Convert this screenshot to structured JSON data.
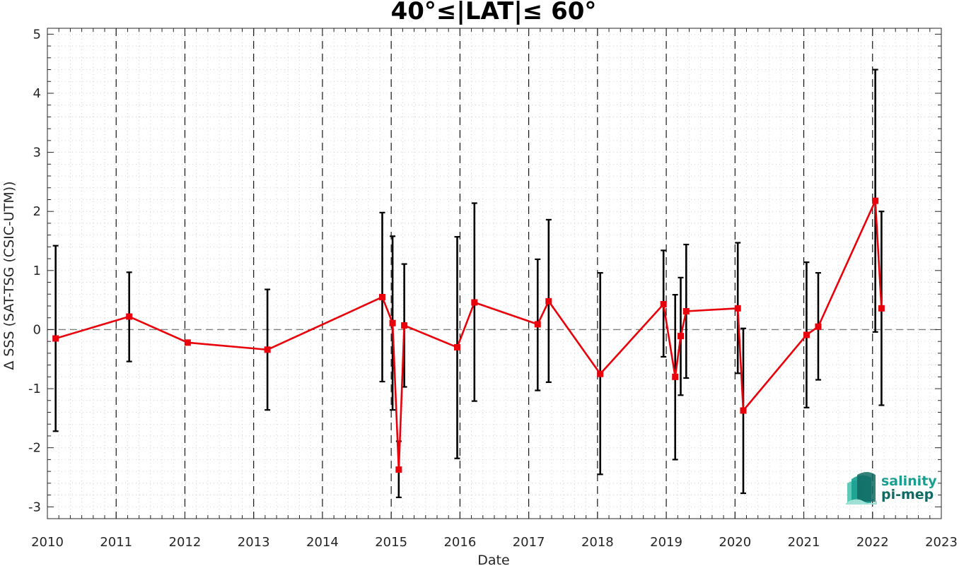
{
  "chart_data": {
    "type": "line",
    "title": "40°≤|LAT|≤ 60°",
    "xlabel": "Date",
    "ylabel": "Δ SSS (SAT-TSG (CSIC-UTM))",
    "xlim": [
      2010,
      2023
    ],
    "ylim": [
      -3.2,
      5.1
    ],
    "x_ticks": [
      "2010",
      "2011",
      "2012",
      "2013",
      "2014",
      "2015",
      "2016",
      "2017",
      "2018",
      "2019",
      "2020",
      "2021",
      "2022",
      "2023"
    ],
    "y_ticks": [
      "-3",
      "-2",
      "-1",
      "0",
      "1",
      "2",
      "3",
      "4",
      "5"
    ],
    "grid": true,
    "reference_line_y": 0,
    "year_boundaries": [
      2011,
      2012,
      2013,
      2014,
      2015,
      2016,
      2017,
      2018,
      2019,
      2020,
      2021,
      2022
    ],
    "series": [
      {
        "color": "#e8000b",
        "marker": "square",
        "points": [
          {
            "x": 2010.12,
            "y": -0.15,
            "lo": -1.72,
            "hi": 1.42
          },
          {
            "x": 2011.19,
            "y": 0.22,
            "lo": -0.54,
            "hi": 0.97
          },
          {
            "x": 2012.04,
            "y": -0.22,
            "lo": null,
            "hi": null
          },
          {
            "x": 2013.2,
            "y": -0.34,
            "lo": -1.36,
            "hi": 0.68
          },
          {
            "x": 2014.87,
            "y": 0.55,
            "lo": -0.88,
            "hi": 1.98
          },
          {
            "x": 2015.02,
            "y": 0.11,
            "lo": -1.36,
            "hi": 1.58
          },
          {
            "x": 2015.11,
            "y": -2.37,
            "lo": -2.84,
            "hi": -1.89
          },
          {
            "x": 2015.19,
            "y": 0.07,
            "lo": -0.97,
            "hi": 1.11
          },
          {
            "x": 2015.96,
            "y": -0.3,
            "lo": -2.18,
            "hi": 1.57
          },
          {
            "x": 2016.21,
            "y": 0.46,
            "lo": -1.21,
            "hi": 2.14
          },
          {
            "x": 2017.13,
            "y": 0.09,
            "lo": -1.03,
            "hi": 1.19
          },
          {
            "x": 2017.29,
            "y": 0.48,
            "lo": -0.89,
            "hi": 1.86
          },
          {
            "x": 2018.04,
            "y": -0.75,
            "lo": -2.45,
            "hi": 0.96
          },
          {
            "x": 2018.96,
            "y": 0.43,
            "lo": -0.46,
            "hi": 1.34
          },
          {
            "x": 2019.13,
            "y": -0.8,
            "lo": -2.2,
            "hi": 0.59
          },
          {
            "x": 2019.21,
            "y": -0.11,
            "lo": -1.11,
            "hi": 0.88
          },
          {
            "x": 2019.29,
            "y": 0.31,
            "lo": -0.82,
            "hi": 1.44
          },
          {
            "x": 2020.04,
            "y": 0.36,
            "lo": -0.74,
            "hi": 1.47
          },
          {
            "x": 2020.12,
            "y": -1.37,
            "lo": -2.77,
            "hi": 0.02
          },
          {
            "x": 2021.04,
            "y": -0.09,
            "lo": -1.32,
            "hi": 1.14
          },
          {
            "x": 2021.21,
            "y": 0.05,
            "lo": -0.85,
            "hi": 0.96
          },
          {
            "x": 2022.04,
            "y": 2.18,
            "lo": -0.04,
            "hi": 4.4
          },
          {
            "x": 2022.13,
            "y": 0.36,
            "lo": -1.28,
            "hi": 2.0
          }
        ]
      }
    ]
  },
  "logo": {
    "line1": "salinity",
    "line2": "pi-mep",
    "colors": {
      "teal": "#17a08f",
      "dark": "#0f6b63"
    }
  },
  "colors": {
    "line": "#e8000b",
    "errorbar": "#000000",
    "axes": "#262626",
    "grid": "#c8c8c8",
    "zero_line": "#808080"
  }
}
